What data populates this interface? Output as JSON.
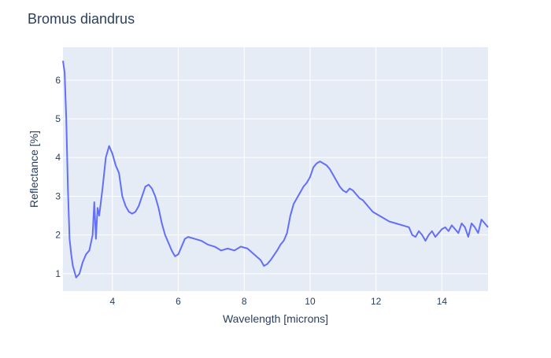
{
  "chart_data": {
    "type": "line",
    "title": "Bromus diandrus",
    "xlabel": "Wavelength [microns]",
    "ylabel": "Reflectance [%]",
    "xlim": [
      2.5,
      15.4
    ],
    "ylim": [
      0.55,
      6.85
    ],
    "x_ticks": [
      4,
      6,
      8,
      10,
      12,
      14
    ],
    "y_ticks": [
      1,
      2,
      3,
      4,
      5,
      6
    ],
    "grid": true,
    "legend": "none",
    "colors": {
      "line": "#636efa",
      "plot_bg": "#e5ecf6",
      "grid": "#ffffff",
      "text": "#2a3f5f"
    },
    "series": [
      {
        "x": [
          2.5,
          2.55,
          2.6,
          2.65,
          2.7,
          2.75,
          2.8,
          2.9,
          3.0,
          3.1,
          3.2,
          3.3,
          3.4,
          3.45,
          3.5,
          3.55,
          3.6,
          3.7,
          3.8,
          3.9,
          4.0,
          4.1,
          4.2,
          4.3,
          4.4,
          4.5,
          4.6,
          4.7,
          4.8,
          4.9,
          5.0,
          5.1,
          5.2,
          5.3,
          5.4,
          5.5,
          5.6,
          5.7,
          5.8,
          5.9,
          6.0,
          6.1,
          6.2,
          6.3,
          6.5,
          6.7,
          6.9,
          7.1,
          7.3,
          7.5,
          7.7,
          7.9,
          8.1,
          8.3,
          8.5,
          8.6,
          8.7,
          8.8,
          9.0,
          9.1,
          9.2,
          9.3,
          9.4,
          9.5,
          9.6,
          9.7,
          9.8,
          9.9,
          10.0,
          10.1,
          10.2,
          10.3,
          10.4,
          10.5,
          10.6,
          10.7,
          10.8,
          10.9,
          11.0,
          11.1,
          11.2,
          11.3,
          11.4,
          11.5,
          11.6,
          11.7,
          11.8,
          11.9,
          12.0,
          12.2,
          12.4,
          12.6,
          12.8,
          13.0,
          13.1,
          13.2,
          13.3,
          13.4,
          13.5,
          13.6,
          13.7,
          13.8,
          13.9,
          14.0,
          14.1,
          14.2,
          14.3,
          14.4,
          14.5,
          14.6,
          14.7,
          14.8,
          14.9,
          15.0,
          15.1,
          15.2,
          15.3,
          15.4
        ],
        "y": [
          6.5,
          6.2,
          5.0,
          3.2,
          1.9,
          1.5,
          1.2,
          0.9,
          1.0,
          1.3,
          1.5,
          1.6,
          2.0,
          2.85,
          1.9,
          2.7,
          2.5,
          3.2,
          4.0,
          4.3,
          4.1,
          3.8,
          3.6,
          3.0,
          2.75,
          2.6,
          2.55,
          2.6,
          2.75,
          3.0,
          3.25,
          3.3,
          3.2,
          3.0,
          2.7,
          2.3,
          2.0,
          1.8,
          1.6,
          1.45,
          1.5,
          1.7,
          1.9,
          1.95,
          1.9,
          1.85,
          1.75,
          1.7,
          1.6,
          1.65,
          1.6,
          1.7,
          1.65,
          1.5,
          1.35,
          1.2,
          1.25,
          1.35,
          1.6,
          1.75,
          1.85,
          2.05,
          2.5,
          2.8,
          2.95,
          3.1,
          3.25,
          3.35,
          3.5,
          3.75,
          3.85,
          3.9,
          3.85,
          3.8,
          3.7,
          3.55,
          3.4,
          3.25,
          3.15,
          3.1,
          3.2,
          3.15,
          3.05,
          2.95,
          2.9,
          2.8,
          2.7,
          2.6,
          2.55,
          2.45,
          2.35,
          2.3,
          2.25,
          2.2,
          2.0,
          1.95,
          2.1,
          2.0,
          1.85,
          2.0,
          2.1,
          1.95,
          2.05,
          2.15,
          2.2,
          2.1,
          2.25,
          2.15,
          2.05,
          2.3,
          2.2,
          1.95,
          2.3,
          2.2,
          2.05,
          2.4,
          2.3,
          2.2
        ]
      }
    ]
  }
}
